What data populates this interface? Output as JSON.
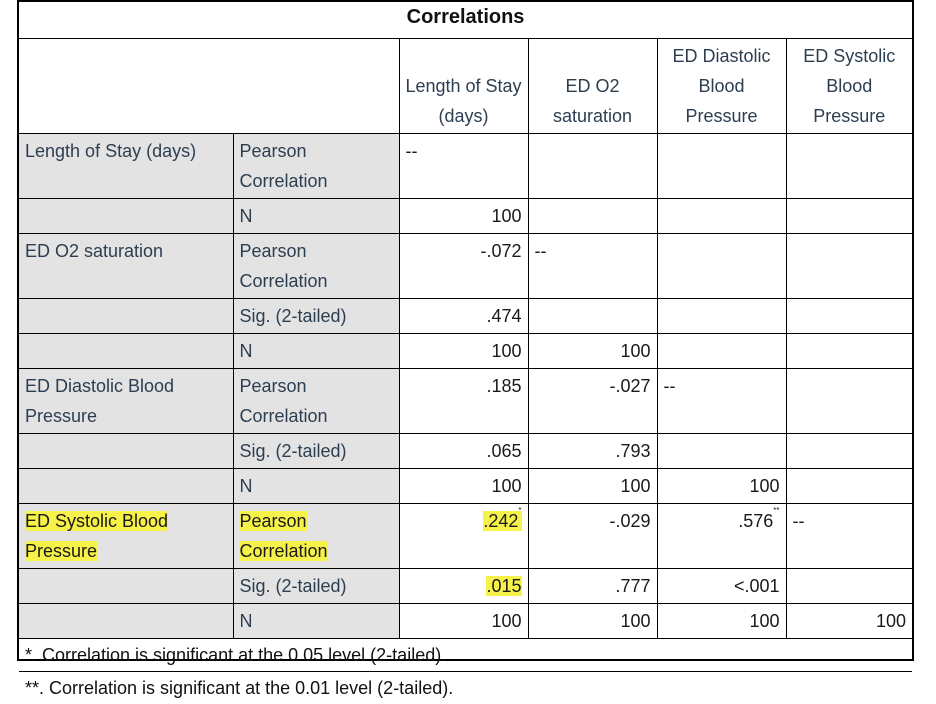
{
  "title": "Correlations",
  "col_headers": {
    "c1": "Length of Stay (days)",
    "c2": "ED O2 saturation",
    "c3": "ED Diastolic Blood Pressure",
    "c4": "ED Systolic Blood Pressure"
  },
  "rows": {
    "los": "Length of Stay (days)",
    "o2": "ED O2 saturation",
    "dia": "ED Diastolic Blood Pressure",
    "sys": "ED Systolic Blood Pressure"
  },
  "stats": {
    "pearson": "Pearson Correlation",
    "sig": "Sig. (2-tailed)",
    "n": "N"
  },
  "cells": {
    "los_pc_c1": "--",
    "los_n_c1": "100",
    "o2_pc_c1": "-.072",
    "o2_pc_c2": "--",
    "o2_sig_c1": ".474",
    "o2_n_c1": "100",
    "o2_n_c2": "100",
    "dia_pc_c1": ".185",
    "dia_pc_c2": "-.027",
    "dia_pc_c3": "--",
    "dia_sig_c1": ".065",
    "dia_sig_c2": ".793",
    "dia_n_c1": "100",
    "dia_n_c2": "100",
    "dia_n_c3": "100",
    "sys_pc_c1": ".242",
    "sys_pc_c1_mark": "*",
    "sys_pc_c2": "-.029",
    "sys_pc_c3": ".576",
    "sys_pc_c3_mark": "**",
    "sys_pc_c4": "--",
    "sys_sig_c1": ".015",
    "sys_sig_c2": ".777",
    "sys_sig_c3": "<.001",
    "sys_n_c1": "100",
    "sys_n_c2": "100",
    "sys_n_c3": "100",
    "sys_n_c4": "100"
  },
  "footnotes": [
    "*. Correlation is significant at the 0.05 level (2-tailed).",
    "**. Correlation is significant at the 0.01 level (2-tailed)."
  ],
  "colors": {
    "highlight": "#f7f24a",
    "stub_bg": "#e3e3e3"
  }
}
